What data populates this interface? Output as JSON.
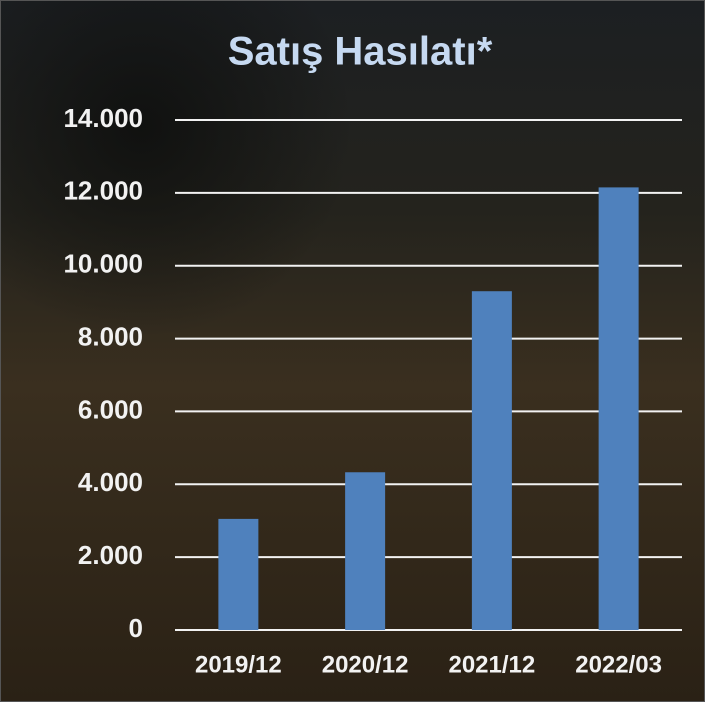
{
  "chart_data": {
    "type": "bar",
    "title": "Satış Hasılatı*",
    "categories": [
      "2019/12",
      "2020/12",
      "2021/12",
      "2022/03"
    ],
    "values": [
      3050,
      4330,
      9300,
      12150
    ],
    "color": "#4f81bd",
    "ylim": [
      0,
      14000
    ],
    "yticks": [
      0,
      {
        "value": 2000,
        "label": "2.000"
      },
      {
        "value": 4000,
        "label": "4.000"
      },
      {
        "value": 6000,
        "label": "6.000"
      },
      {
        "value": 8000,
        "label": "8.000"
      },
      {
        "value": 10000,
        "label": "10.000"
      },
      {
        "value": 12000,
        "label": "12.000"
      },
      {
        "value": 14000,
        "label": "14.000"
      }
    ],
    "grid": true
  }
}
